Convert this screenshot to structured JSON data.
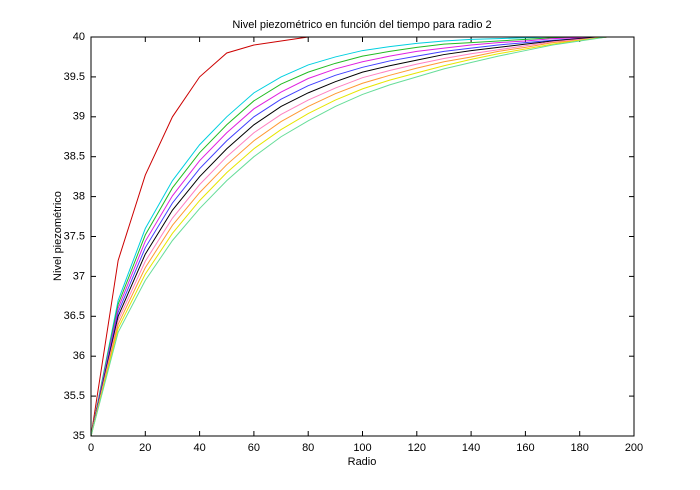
{
  "chart_data": {
    "type": "line",
    "title": "Nivel piezométrico en función del tiempo para radio 2",
    "xlabel": "Radio",
    "ylabel": "Nivel piezométrico",
    "x": [
      0,
      10,
      20,
      30,
      40,
      50,
      60,
      70,
      80,
      90,
      100,
      110,
      120,
      130,
      140,
      150,
      160,
      170,
      180,
      190
    ],
    "xlim": [
      0,
      200
    ],
    "xticks": [
      0,
      20,
      40,
      60,
      80,
      100,
      120,
      140,
      160,
      180,
      200
    ],
    "ylim": [
      35,
      40
    ],
    "yticks": [
      35,
      35.5,
      36,
      36.5,
      37,
      37.5,
      38,
      38.5,
      39,
      39.5,
      40
    ],
    "grid": false,
    "series": [
      {
        "color": "#cc0000",
        "values": [
          35,
          37.2,
          38.27,
          39.0,
          39.5,
          39.8,
          39.9,
          39.95,
          40,
          40,
          null,
          null,
          null,
          null,
          null,
          null,
          null,
          null,
          null,
          null
        ]
      },
      {
        "color": "#00d0e0",
        "values": [
          35,
          36.7,
          37.6,
          38.2,
          38.65,
          39.0,
          39.3,
          39.5,
          39.65,
          39.75,
          39.83,
          39.88,
          39.92,
          39.95,
          39.97,
          39.98,
          39.99,
          40,
          40,
          40
        ]
      },
      {
        "color": "#22bb22",
        "values": [
          35,
          36.65,
          37.52,
          38.11,
          38.55,
          38.9,
          39.2,
          39.41,
          39.56,
          39.67,
          39.76,
          39.82,
          39.87,
          39.91,
          39.93,
          39.95,
          39.97,
          39.99,
          39.99,
          40
        ]
      },
      {
        "color": "#e020e0",
        "values": [
          35,
          36.6,
          37.44,
          38.01,
          38.45,
          38.8,
          39.1,
          39.31,
          39.48,
          39.6,
          39.69,
          39.76,
          39.82,
          39.86,
          39.9,
          39.93,
          39.95,
          39.98,
          39.99,
          40
        ]
      },
      {
        "color": "#4040ff",
        "values": [
          35,
          36.55,
          37.36,
          37.92,
          38.35,
          38.7,
          39,
          39.22,
          39.39,
          39.52,
          39.62,
          39.7,
          39.76,
          39.82,
          39.86,
          39.9,
          39.93,
          39.96,
          39.98,
          40
        ]
      },
      {
        "color": "#000000",
        "values": [
          35,
          36.5,
          37.28,
          37.83,
          38.25,
          38.6,
          38.9,
          39.13,
          39.3,
          39.44,
          39.56,
          39.64,
          39.71,
          39.78,
          39.83,
          39.87,
          39.91,
          39.95,
          39.98,
          40
        ]
      },
      {
        "color": "#ff80c0",
        "values": [
          35,
          36.45,
          37.19,
          37.73,
          38.15,
          38.5,
          38.8,
          39.03,
          39.21,
          39.36,
          39.49,
          39.58,
          39.66,
          39.73,
          39.79,
          39.84,
          39.89,
          39.94,
          39.97,
          40
        ]
      },
      {
        "color": "#ff9933",
        "values": [
          35,
          36.4,
          37.11,
          37.64,
          38.05,
          38.4,
          38.7,
          38.94,
          39.13,
          39.29,
          39.42,
          39.52,
          39.61,
          39.69,
          39.75,
          39.82,
          39.87,
          39.93,
          39.96,
          40
        ]
      },
      {
        "color": "#e6e600",
        "values": [
          35,
          36.35,
          37.03,
          37.54,
          37.95,
          38.3,
          38.6,
          38.84,
          39.04,
          39.21,
          39.35,
          39.46,
          39.55,
          39.64,
          39.72,
          39.79,
          39.85,
          39.91,
          39.96,
          40
        ]
      },
      {
        "color": "#66dd99",
        "values": [
          35,
          36.3,
          36.95,
          37.45,
          37.85,
          38.2,
          38.5,
          38.75,
          38.95,
          39.13,
          39.28,
          39.4,
          39.5,
          39.6,
          39.68,
          39.76,
          39.83,
          39.9,
          39.95,
          40
        ]
      }
    ]
  }
}
